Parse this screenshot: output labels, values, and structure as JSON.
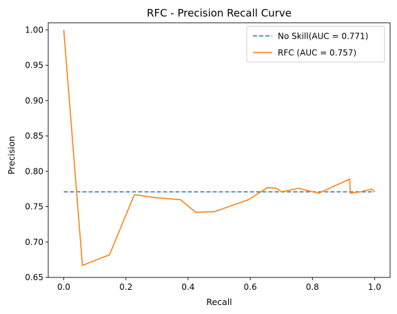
{
  "chart_data": {
    "type": "line",
    "title": "RFC - Precision Recall Curve",
    "xlabel": "Recall",
    "ylabel": "Precision",
    "xlim": [
      -0.05,
      1.05
    ],
    "ylim": [
      0.65,
      1.01
    ],
    "xticks": [
      0.0,
      0.2,
      0.4,
      0.6,
      0.8,
      1.0
    ],
    "xtick_labels": [
      "0.0",
      "0.2",
      "0.4",
      "0.6",
      "0.8",
      "1.0"
    ],
    "yticks": [
      0.65,
      0.7,
      0.75,
      0.8,
      0.85,
      0.9,
      0.95,
      1.0
    ],
    "ytick_labels": [
      "0.65",
      "0.70",
      "0.75",
      "0.80",
      "0.85",
      "0.90",
      "0.95",
      "1.00"
    ],
    "grid": false,
    "legend_position": "top-right",
    "series": [
      {
        "name": "No Skill(AUC = 0.771)",
        "style": "dashed",
        "color": "#1f77b4",
        "x": [
          0.0,
          1.0
        ],
        "y": [
          0.771,
          0.771
        ]
      },
      {
        "name": "RFC (AUC = 0.757)",
        "style": "solid",
        "color": "#ff7f0e",
        "x": [
          0.0,
          0.06,
          0.147,
          0.227,
          0.29,
          0.375,
          0.425,
          0.485,
          0.595,
          0.655,
          0.685,
          0.7,
          0.755,
          0.82,
          0.86,
          0.92,
          0.922,
          0.955,
          0.99,
          1.0
        ],
        "y": [
          1.0,
          0.667,
          0.682,
          0.767,
          0.763,
          0.76,
          0.742,
          0.743,
          0.76,
          0.777,
          0.776,
          0.771,
          0.776,
          0.769,
          0.777,
          0.789,
          0.769,
          0.771,
          0.775,
          0.771
        ]
      }
    ]
  }
}
